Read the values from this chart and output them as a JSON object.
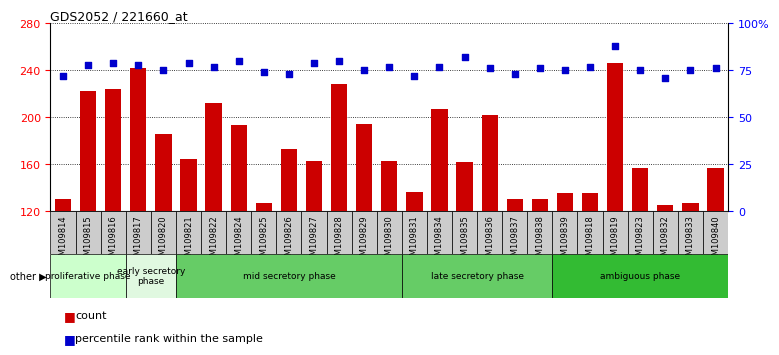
{
  "title": "GDS2052 / 221660_at",
  "samples": [
    "GSM109814",
    "GSM109815",
    "GSM109816",
    "GSM109817",
    "GSM109820",
    "GSM109821",
    "GSM109822",
    "GSM109824",
    "GSM109825",
    "GSM109826",
    "GSM109827",
    "GSM109828",
    "GSM109829",
    "GSM109830",
    "GSM109831",
    "GSM109834",
    "GSM109835",
    "GSM109836",
    "GSM109837",
    "GSM109838",
    "GSM109839",
    "GSM109818",
    "GSM109819",
    "GSM109823",
    "GSM109832",
    "GSM109833",
    "GSM109840"
  ],
  "counts": [
    130,
    222,
    224,
    242,
    186,
    164,
    212,
    193,
    127,
    173,
    163,
    228,
    194,
    163,
    136,
    207,
    162,
    202,
    130,
    130,
    135,
    135,
    246,
    157,
    125,
    127,
    157
  ],
  "percentiles": [
    72,
    78,
    79,
    78,
    75,
    79,
    77,
    80,
    74,
    73,
    79,
    80,
    75,
    77,
    72,
    77,
    82,
    76,
    73,
    76,
    75,
    77,
    88,
    75,
    71,
    75,
    76
  ],
  "ylim_left": [
    120,
    280
  ],
  "ylim_right": [
    0,
    100
  ],
  "yticks_left": [
    120,
    160,
    200,
    240,
    280
  ],
  "yticks_right": [
    0,
    25,
    50,
    75,
    100
  ],
  "ytick_labels_right": [
    "0",
    "25",
    "50",
    "75",
    "100%"
  ],
  "bar_color": "#cc0000",
  "dot_color": "#0000cc",
  "phases": [
    {
      "label": "proliferative phase",
      "start": 0,
      "end": 3,
      "color": "#ccffcc"
    },
    {
      "label": "early secretory\nphase",
      "start": 3,
      "end": 5,
      "color": "#e0f8e0"
    },
    {
      "label": "mid secretory phase",
      "start": 5,
      "end": 14,
      "color": "#66cc66"
    },
    {
      "label": "late secretory phase",
      "start": 14,
      "end": 20,
      "color": "#66cc66"
    },
    {
      "label": "ambiguous phase",
      "start": 20,
      "end": 27,
      "color": "#33bb33"
    }
  ],
  "xtick_bg": "#cccccc",
  "plot_bg": "#ffffff",
  "other_label": "other"
}
